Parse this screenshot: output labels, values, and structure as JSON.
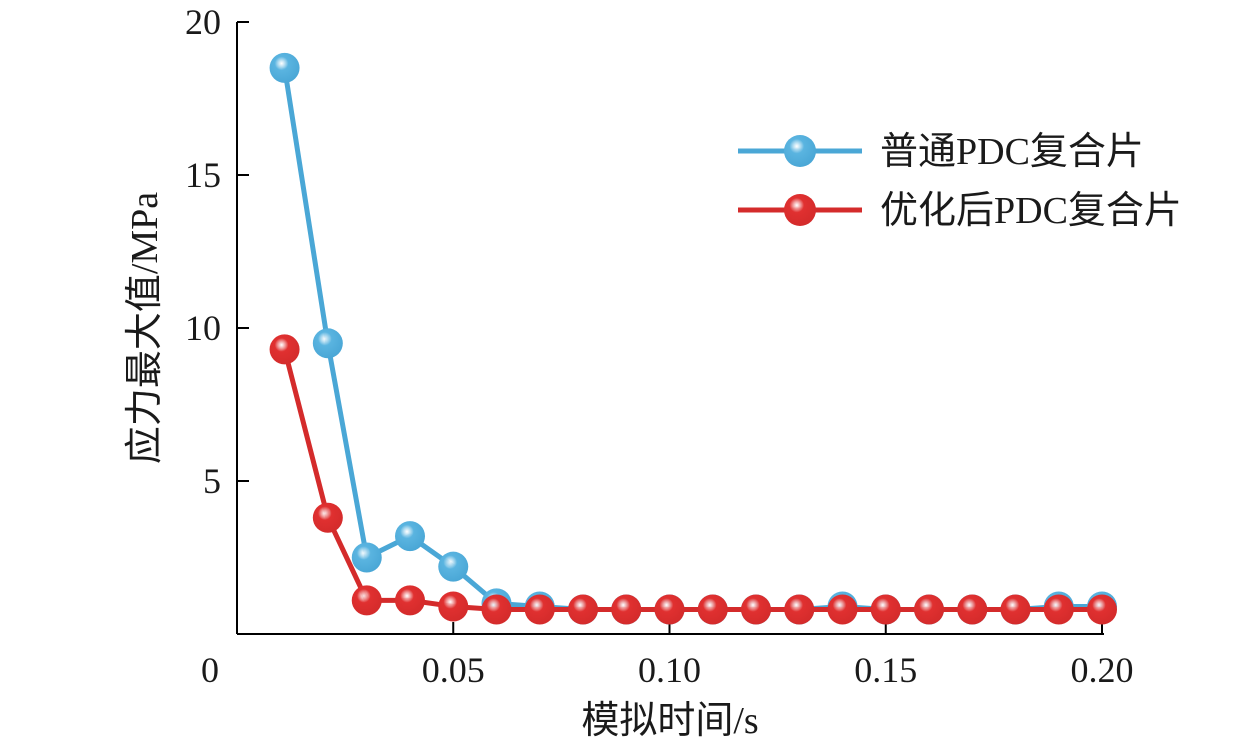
{
  "chart_data": {
    "type": "line",
    "title": "",
    "xlabel": "模拟时间/s",
    "ylabel": "应力最大值/MPa",
    "xlim": [
      0,
      0.2
    ],
    "ylim": [
      0,
      20
    ],
    "x_ticks": [
      {
        "value": 0,
        "label": "0"
      },
      {
        "value": 0.05,
        "label": "0.05"
      },
      {
        "value": 0.1,
        "label": "0.10"
      },
      {
        "value": 0.15,
        "label": "0.15"
      },
      {
        "value": 0.2,
        "label": "0.20"
      }
    ],
    "y_ticks": [
      {
        "value": 5,
        "label": "5"
      },
      {
        "value": 10,
        "label": "10"
      },
      {
        "value": 15,
        "label": "15"
      },
      {
        "value": 20,
        "label": "20"
      }
    ],
    "grid": false,
    "legend_position": "top-right",
    "series": [
      {
        "name": "普通PDC复合片",
        "color": "#4aa7d6",
        "marker_color": "#5ab4e0",
        "x": [
          0.011,
          0.021,
          0.03,
          0.04,
          0.05,
          0.06,
          0.07,
          0.08,
          0.09,
          0.1,
          0.11,
          0.12,
          0.13,
          0.14,
          0.15,
          0.16,
          0.17,
          0.18,
          0.19,
          0.2
        ],
        "y": [
          18.5,
          9.5,
          2.5,
          3.2,
          2.2,
          1.0,
          0.9,
          0.8,
          0.8,
          0.8,
          0.8,
          0.8,
          0.8,
          0.9,
          0.8,
          0.8,
          0.8,
          0.8,
          0.9,
          0.9
        ]
      },
      {
        "name": "优化后PDC复合片",
        "color": "#d42b2b",
        "marker_color": "#e03030",
        "x": [
          0.011,
          0.021,
          0.03,
          0.04,
          0.05,
          0.06,
          0.07,
          0.08,
          0.09,
          0.1,
          0.11,
          0.12,
          0.13,
          0.14,
          0.15,
          0.16,
          0.17,
          0.18,
          0.19,
          0.2
        ],
        "y": [
          9.3,
          3.8,
          1.1,
          1.1,
          0.9,
          0.8,
          0.8,
          0.8,
          0.8,
          0.8,
          0.8,
          0.8,
          0.8,
          0.8,
          0.8,
          0.8,
          0.8,
          0.8,
          0.8,
          0.8
        ]
      }
    ]
  }
}
